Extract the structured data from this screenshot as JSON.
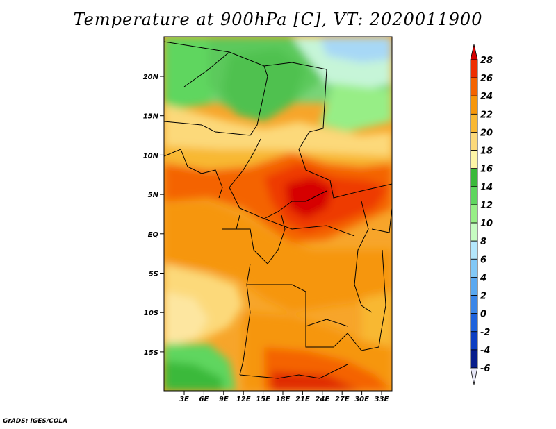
{
  "title": "Temperature at 900hPa [C], VT: 2020011900",
  "footer": "GrADS: IGES/COLA",
  "map": {
    "lat_labels": [
      "20N",
      "15N",
      "10N",
      "5N",
      "EQ",
      "5S",
      "10S",
      "15S"
    ],
    "lon_labels": [
      "3E",
      "6E",
      "9E",
      "12E",
      "15E",
      "18E",
      "21E",
      "24E",
      "27E",
      "30E",
      "33E"
    ]
  },
  "colorbar": {
    "labels": [
      "28",
      "26",
      "24",
      "22",
      "20",
      "18",
      "16",
      "14",
      "12",
      "10",
      "8",
      "6",
      "4",
      "2",
      "0",
      "-2",
      "-4",
      "-6"
    ],
    "colors": [
      "#d60000",
      "#ee2e00",
      "#f46300",
      "#f6960a",
      "#f8b833",
      "#fcd97a",
      "#fef6a6",
      "#3ab93a",
      "#5fd65f",
      "#97ee86",
      "#c6fcc1",
      "#b4e7fc",
      "#82c8f6",
      "#5aa8f0",
      "#3b86e8",
      "#1e62dc",
      "#0c3ec2",
      "#081d8c",
      "#04105c"
    ]
  }
}
